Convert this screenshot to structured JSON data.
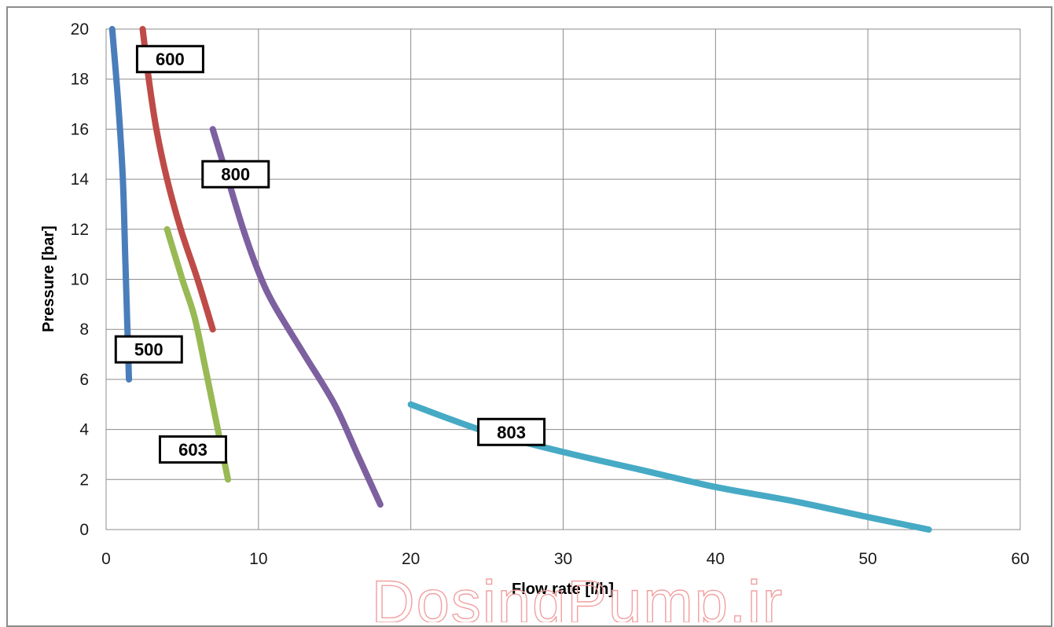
{
  "watermark": "DosingPump.ir",
  "chart_data": {
    "type": "line",
    "title": "",
    "xlabel": "Flow rate [l/h]",
    "ylabel": "Pressure [bar]",
    "xlim": [
      0,
      60
    ],
    "ylim": [
      0,
      20
    ],
    "xticks": [
      0,
      10,
      20,
      30,
      40,
      50,
      60
    ],
    "yticks": [
      0,
      2,
      4,
      6,
      8,
      10,
      12,
      14,
      16,
      18,
      20
    ],
    "grid": true,
    "legend": "none",
    "series": [
      {
        "name": "500",
        "color": "#4a7ebb",
        "label_pos": [
          2.8,
          7.2
        ],
        "points": [
          [
            0.4,
            20
          ],
          [
            0.8,
            17
          ],
          [
            1.1,
            14
          ],
          [
            1.25,
            11
          ],
          [
            1.4,
            8
          ],
          [
            1.5,
            6
          ]
        ]
      },
      {
        "name": "600",
        "color": "#be4b48",
        "label_pos": [
          4.2,
          18.8
        ],
        "points": [
          [
            2.4,
            20
          ],
          [
            2.8,
            18
          ],
          [
            3.3,
            16
          ],
          [
            4.0,
            14
          ],
          [
            4.9,
            12
          ],
          [
            6.0,
            10
          ],
          [
            7.0,
            8
          ]
        ]
      },
      {
        "name": "800",
        "color": "#7d60a0",
        "label_pos": [
          8.5,
          14.2
        ],
        "points": [
          [
            7.0,
            16
          ],
          [
            8.0,
            14
          ],
          [
            9.0,
            12
          ],
          [
            10.0,
            10.3
          ],
          [
            11.0,
            9.0
          ],
          [
            13.0,
            7.0
          ],
          [
            15.0,
            5.0
          ],
          [
            16.5,
            3.0
          ],
          [
            18.0,
            1.0
          ]
        ]
      },
      {
        "name": "603",
        "color": "#98b954",
        "label_pos": [
          5.7,
          3.2
        ],
        "points": [
          [
            4.0,
            12
          ],
          [
            5.0,
            10
          ],
          [
            5.8,
            8.5
          ],
          [
            6.5,
            6.5
          ],
          [
            7.0,
            5.0
          ],
          [
            7.5,
            3.5
          ],
          [
            8.0,
            2.0
          ]
        ]
      },
      {
        "name": "803",
        "color": "#46aac5",
        "label_pos": [
          26.6,
          3.9
        ],
        "points": [
          [
            20,
            5.0
          ],
          [
            25,
            3.9
          ],
          [
            30,
            3.1
          ],
          [
            35,
            2.4
          ],
          [
            40,
            1.7
          ],
          [
            45,
            1.15
          ],
          [
            50,
            0.5
          ],
          [
            54,
            0.0
          ]
        ]
      }
    ]
  }
}
